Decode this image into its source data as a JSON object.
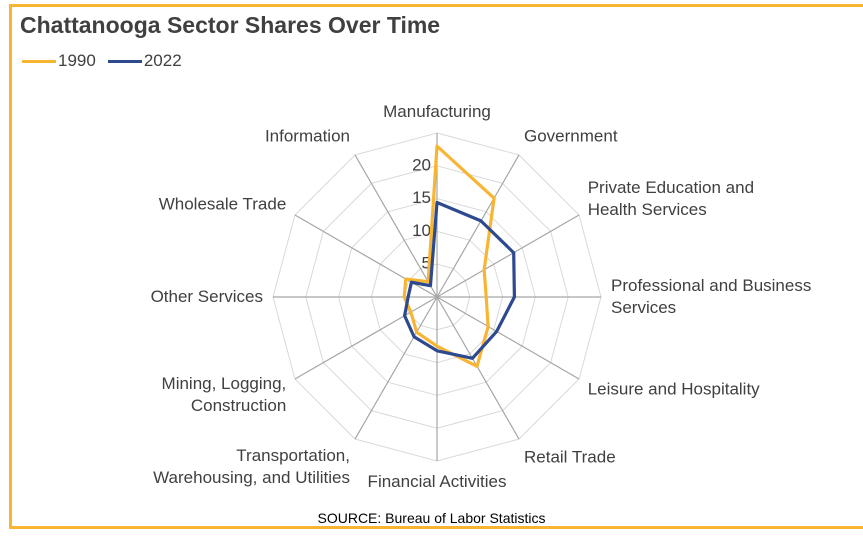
{
  "chart_data": {
    "type": "radar",
    "title": "Chattanooga Sector Shares Over Time",
    "source": "SOURCE: Bureau of Labor Statistics",
    "categories": [
      "Manufacturing",
      "Government",
      "Private Education and\nHealth Services",
      "Professional and Business\nServices",
      "Leisure and Hospitality",
      "Retail Trade",
      "Financial Activities",
      "Transportation,\nWarehousing, and Utilities",
      "Mining, Logging,\nConstruction",
      "Other Services",
      "Wholesale Trade",
      "Information"
    ],
    "series": [
      {
        "name": "1990",
        "color": "#f8b534",
        "values": [
          23,
          17.4,
          8.3,
          7.5,
          9,
          12.2,
          7.5,
          6.2,
          4.6,
          5,
          5.5,
          2.7
        ]
      },
      {
        "name": "2022",
        "color": "#2e4a8e",
        "values": [
          14.4,
          13.4,
          13.5,
          11.8,
          10.5,
          10.8,
          8.2,
          7,
          5.7,
          4.4,
          4.5,
          2
        ]
      }
    ],
    "ylim": [
      0,
      25
    ],
    "yticks": [
      5,
      10,
      15,
      20
    ],
    "grid": true,
    "legend": "top-left"
  }
}
